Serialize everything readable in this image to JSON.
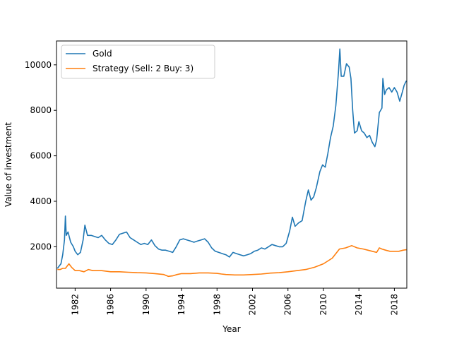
{
  "chart_data": {
    "type": "line",
    "title": "",
    "xlabel": "Year",
    "ylabel": "Value of investment",
    "xlim": [
      1979.9,
      2019.4
    ],
    "ylim": [
      180,
      11050
    ],
    "x_ticks": [
      1982,
      1986,
      1990,
      1994,
      1998,
      2002,
      2006,
      2010,
      2014,
      2018
    ],
    "y_ticks": [
      2000,
      4000,
      6000,
      8000,
      10000
    ],
    "grid": false,
    "legend_position": "upper-left",
    "series": [
      {
        "name": "Gold",
        "color": "#1f77b4",
        "points": [
          [
            1980.0,
            1050
          ],
          [
            1980.2,
            1150
          ],
          [
            1980.4,
            1250
          ],
          [
            1980.6,
            1650
          ],
          [
            1980.8,
            2300
          ],
          [
            1980.9,
            3350
          ],
          [
            1981.0,
            2500
          ],
          [
            1981.2,
            2650
          ],
          [
            1981.5,
            2200
          ],
          [
            1981.8,
            2000
          ],
          [
            1982.0,
            1800
          ],
          [
            1982.3,
            1650
          ],
          [
            1982.6,
            1750
          ],
          [
            1982.9,
            2300
          ],
          [
            1983.1,
            2950
          ],
          [
            1983.4,
            2500
          ],
          [
            1983.8,
            2500
          ],
          [
            1984.2,
            2450
          ],
          [
            1984.6,
            2400
          ],
          [
            1985.0,
            2500
          ],
          [
            1985.4,
            2300
          ],
          [
            1985.8,
            2150
          ],
          [
            1986.2,
            2100
          ],
          [
            1986.6,
            2300
          ],
          [
            1987.0,
            2550
          ],
          [
            1987.4,
            2600
          ],
          [
            1987.8,
            2650
          ],
          [
            1988.2,
            2400
          ],
          [
            1988.6,
            2300
          ],
          [
            1989.0,
            2200
          ],
          [
            1989.4,
            2100
          ],
          [
            1989.8,
            2150
          ],
          [
            1990.2,
            2100
          ],
          [
            1990.6,
            2300
          ],
          [
            1991.0,
            2050
          ],
          [
            1991.4,
            1900
          ],
          [
            1991.8,
            1850
          ],
          [
            1992.2,
            1850
          ],
          [
            1992.6,
            1800
          ],
          [
            1993.0,
            1750
          ],
          [
            1993.4,
            2000
          ],
          [
            1993.8,
            2300
          ],
          [
            1994.2,
            2350
          ],
          [
            1994.6,
            2300
          ],
          [
            1995.0,
            2250
          ],
          [
            1995.4,
            2200
          ],
          [
            1995.8,
            2250
          ],
          [
            1996.2,
            2300
          ],
          [
            1996.6,
            2350
          ],
          [
            1997.0,
            2200
          ],
          [
            1997.4,
            1950
          ],
          [
            1997.8,
            1800
          ],
          [
            1998.2,
            1750
          ],
          [
            1998.6,
            1700
          ],
          [
            1999.0,
            1650
          ],
          [
            1999.4,
            1550
          ],
          [
            1999.8,
            1750
          ],
          [
            2000.2,
            1700
          ],
          [
            2000.6,
            1650
          ],
          [
            2001.0,
            1600
          ],
          [
            2001.4,
            1650
          ],
          [
            2001.8,
            1700
          ],
          [
            2002.2,
            1800
          ],
          [
            2002.6,
            1850
          ],
          [
            2003.0,
            1950
          ],
          [
            2003.4,
            1900
          ],
          [
            2003.8,
            2000
          ],
          [
            2004.2,
            2100
          ],
          [
            2004.6,
            2050
          ],
          [
            2005.0,
            2000
          ],
          [
            2005.4,
            2000
          ],
          [
            2005.8,
            2150
          ],
          [
            2006.2,
            2700
          ],
          [
            2006.5,
            3300
          ],
          [
            2006.8,
            2900
          ],
          [
            2007.2,
            3050
          ],
          [
            2007.6,
            3150
          ],
          [
            2008.0,
            4000
          ],
          [
            2008.3,
            4500
          ],
          [
            2008.6,
            4050
          ],
          [
            2008.9,
            4200
          ],
          [
            2009.2,
            4600
          ],
          [
            2009.6,
            5300
          ],
          [
            2009.9,
            5600
          ],
          [
            2010.2,
            5500
          ],
          [
            2010.5,
            6100
          ],
          [
            2010.8,
            6800
          ],
          [
            2011.1,
            7300
          ],
          [
            2011.4,
            8200
          ],
          [
            2011.7,
            9700
          ],
          [
            2011.85,
            10700
          ],
          [
            2012.0,
            9500
          ],
          [
            2012.3,
            9500
          ],
          [
            2012.6,
            10050
          ],
          [
            2012.9,
            9900
          ],
          [
            2013.1,
            9400
          ],
          [
            2013.3,
            8000
          ],
          [
            2013.5,
            7000
          ],
          [
            2013.8,
            7100
          ],
          [
            2014.0,
            7500
          ],
          [
            2014.3,
            7100
          ],
          [
            2014.6,
            7000
          ],
          [
            2014.9,
            6800
          ],
          [
            2015.2,
            6900
          ],
          [
            2015.5,
            6600
          ],
          [
            2015.8,
            6400
          ],
          [
            2016.0,
            6700
          ],
          [
            2016.3,
            7900
          ],
          [
            2016.6,
            8100
          ],
          [
            2016.7,
            9400
          ],
          [
            2016.9,
            8700
          ],
          [
            2017.1,
            8900
          ],
          [
            2017.4,
            9000
          ],
          [
            2017.7,
            8800
          ],
          [
            2018.0,
            9000
          ],
          [
            2018.3,
            8800
          ],
          [
            2018.6,
            8400
          ],
          [
            2018.9,
            8800
          ],
          [
            2019.1,
            9100
          ],
          [
            2019.35,
            9300
          ]
        ]
      },
      {
        "name": "Strategy (Sell: 2 Buy: 3)",
        "color": "#ff7f0e",
        "points": [
          [
            1980.0,
            1000
          ],
          [
            1980.3,
            1000
          ],
          [
            1980.6,
            1050
          ],
          [
            1980.9,
            1050
          ],
          [
            1981.1,
            1150
          ],
          [
            1981.3,
            1250
          ],
          [
            1981.6,
            1100
          ],
          [
            1982.0,
            950
          ],
          [
            1982.5,
            950
          ],
          [
            1983.0,
            900
          ],
          [
            1983.5,
            1000
          ],
          [
            1984.0,
            950
          ],
          [
            1985.0,
            950
          ],
          [
            1986.0,
            900
          ],
          [
            1987.0,
            900
          ],
          [
            1988.0,
            880
          ],
          [
            1989.0,
            860
          ],
          [
            1990.0,
            850
          ],
          [
            1991.0,
            820
          ],
          [
            1992.0,
            780
          ],
          [
            1992.5,
            700
          ],
          [
            1993.0,
            720
          ],
          [
            1993.5,
            780
          ],
          [
            1994.0,
            820
          ],
          [
            1995.0,
            820
          ],
          [
            1996.0,
            850
          ],
          [
            1997.0,
            850
          ],
          [
            1998.0,
            830
          ],
          [
            1998.5,
            800
          ],
          [
            1999.0,
            780
          ],
          [
            2000.0,
            760
          ],
          [
            2001.0,
            760
          ],
          [
            2002.0,
            780
          ],
          [
            2003.0,
            800
          ],
          [
            2004.0,
            840
          ],
          [
            2005.0,
            860
          ],
          [
            2006.0,
            900
          ],
          [
            2007.0,
            950
          ],
          [
            2008.0,
            1000
          ],
          [
            2009.0,
            1100
          ],
          [
            2010.0,
            1250
          ],
          [
            2011.0,
            1500
          ],
          [
            2011.8,
            1900
          ],
          [
            2012.5,
            1950
          ],
          [
            2013.2,
            2050
          ],
          [
            2013.8,
            1950
          ],
          [
            2014.5,
            1900
          ],
          [
            2015.0,
            1850
          ],
          [
            2015.5,
            1800
          ],
          [
            2016.0,
            1750
          ],
          [
            2016.3,
            1950
          ],
          [
            2016.6,
            1900
          ],
          [
            2017.0,
            1850
          ],
          [
            2017.5,
            1800
          ],
          [
            2018.0,
            1800
          ],
          [
            2018.5,
            1800
          ],
          [
            2019.0,
            1850
          ],
          [
            2019.35,
            1870
          ]
        ]
      }
    ]
  }
}
